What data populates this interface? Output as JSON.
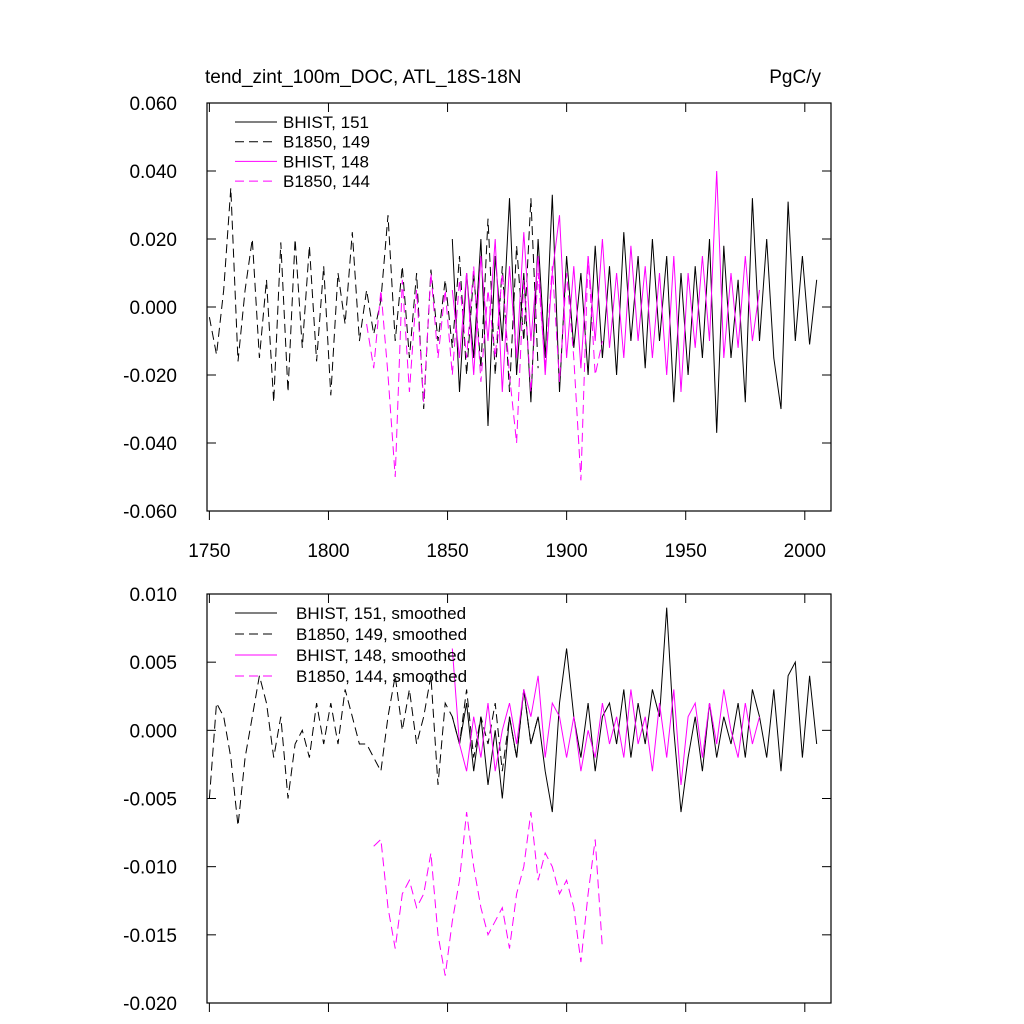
{
  "chart_data": [
    {
      "type": "line",
      "title": "tend_zint_100m_DOC, ATL_18S-18N",
      "units": "PgC/y",
      "xlim": [
        1749,
        2011
      ],
      "ylim": [
        -0.06,
        0.06
      ],
      "xticks": [
        1750,
        1800,
        1850,
        1900,
        1950,
        2000
      ],
      "xtick_labels": true,
      "yticks": [
        {
          "value": -0.06,
          "label": "-0.060"
        },
        {
          "value": -0.04,
          "label": "-0.040"
        },
        {
          "value": -0.02,
          "label": "-0.020"
        },
        {
          "value": 0,
          "label": "0.000"
        },
        {
          "value": 0.02,
          "label": "0.020"
        },
        {
          "value": 0.04,
          "label": "0.040"
        },
        {
          "value": 0.06,
          "label": "0.060"
        }
      ],
      "x": [
        1750,
        1753,
        1756,
        1759,
        1762,
        1765,
        1768,
        1771,
        1774,
        1777,
        1780,
        1783,
        1786,
        1789,
        1792,
        1795,
        1798,
        1801,
        1804,
        1807,
        1810,
        1813,
        1816,
        1819,
        1822,
        1825,
        1828,
        1831,
        1834,
        1837,
        1840,
        1843,
        1846,
        1849,
        1852,
        1855,
        1858,
        1861,
        1864,
        1867,
        1870,
        1873,
        1876,
        1879,
        1882,
        1885,
        1888,
        1891,
        1894,
        1897,
        1900,
        1903,
        1906,
        1909,
        1912,
        1915,
        1918,
        1921,
        1924,
        1927,
        1930,
        1933,
        1936,
        1939,
        1942,
        1945,
        1948,
        1951,
        1954,
        1957,
        1960,
        1963,
        1966,
        1969,
        1972,
        1975,
        1978,
        1981,
        1984,
        1987,
        1990,
        1993,
        1996,
        1999,
        2002,
        2005
      ],
      "series": [
        {
          "name": "BHIST, 151",
          "color": "#000000",
          "dash": false,
          "values": [
            null,
            null,
            null,
            null,
            null,
            null,
            null,
            null,
            null,
            null,
            null,
            null,
            null,
            null,
            null,
            null,
            null,
            null,
            null,
            null,
            null,
            null,
            null,
            null,
            null,
            null,
            null,
            null,
            null,
            null,
            null,
            null,
            null,
            null,
            0.02,
            -0.025,
            0.01,
            -0.015,
            0.02,
            -0.035,
            0.015,
            -0.01,
            0.032,
            -0.02,
            0.01,
            -0.028,
            0.02,
            -0.015,
            0.033,
            -0.025,
            0.015,
            -0.012,
            0.01,
            -0.02,
            0.018,
            -0.015,
            0.012,
            -0.02,
            0.022,
            -0.01,
            0.015,
            -0.018,
            0.02,
            -0.01,
            0.015,
            -0.028,
            0.01,
            -0.02,
            0.012,
            -0.015,
            0.02,
            -0.037,
            0.018,
            -0.015,
            0.008,
            -0.028,
            0.032,
            -0.01,
            0.02,
            -0.015,
            -0.03,
            0.031,
            -0.01,
            0.015,
            -0.011,
            0.008
          ]
        },
        {
          "name": "B1850, 149",
          "color": "#000000",
          "dash": true,
          "values": [
            -0.003,
            -0.014,
            0.005,
            0.035,
            -0.016,
            0.005,
            0.02,
            -0.015,
            0.008,
            -0.028,
            0.019,
            -0.025,
            0.02,
            -0.012,
            0.018,
            -0.016,
            0.012,
            -0.026,
            0.01,
            -0.005,
            0.022,
            -0.01,
            0.005,
            -0.008,
            0.002,
            0.027,
            -0.01,
            0.012,
            -0.015,
            0.01,
            -0.03,
            0.011,
            -0.01,
            0.008,
            -0.012,
            0.015,
            -0.02,
            0.01,
            -0.018,
            0.026,
            -0.02,
            0.012,
            -0.025,
            0.018,
            -0.01,
            0.032,
            -0.018,
            null,
            null,
            null,
            null,
            null,
            null,
            null,
            null,
            null,
            null,
            null,
            null,
            null,
            null,
            null,
            null,
            null,
            null,
            null,
            null,
            null,
            null,
            null,
            null,
            null,
            null,
            null,
            null,
            null,
            null,
            null,
            null,
            null,
            null,
            null,
            null,
            null,
            null,
            null
          ]
        },
        {
          "name": "BHIST, 148",
          "color": "#ff00ff",
          "dash": false,
          "values": [
            null,
            null,
            null,
            null,
            null,
            null,
            null,
            null,
            null,
            null,
            null,
            null,
            null,
            null,
            null,
            null,
            null,
            null,
            null,
            null,
            null,
            null,
            null,
            null,
            null,
            null,
            null,
            null,
            null,
            null,
            null,
            null,
            null,
            null,
            0.005,
            -0.015,
            0.01,
            -0.02,
            0.015,
            -0.01,
            0.02,
            -0.025,
            0.012,
            -0.015,
            0.022,
            -0.01,
            0.015,
            -0.02,
            0.01,
            0.027,
            -0.015,
            0.012,
            -0.018,
            0.015,
            -0.01,
            0.02,
            -0.012,
            0.01,
            -0.015,
            0.018,
            -0.01,
            0.012,
            -0.015,
            0.01,
            -0.02,
            0.015,
            -0.025,
            0.01,
            -0.012,
            0.015,
            -0.01,
            0.04,
            -0.015,
            0.01,
            -0.012,
            0.015,
            -0.01,
            0.005,
            null,
            null,
            null,
            null,
            null,
            null,
            null,
            null
          ]
        },
        {
          "name": "B1850, 144",
          "color": "#ff00ff",
          "dash": true,
          "values": [
            null,
            null,
            null,
            null,
            null,
            null,
            null,
            null,
            null,
            null,
            null,
            null,
            null,
            null,
            null,
            null,
            null,
            null,
            null,
            null,
            null,
            null,
            -0.005,
            -0.018,
            0.005,
            -0.02,
            -0.05,
            0.008,
            -0.025,
            0.005,
            -0.028,
            0.01,
            -0.015,
            0.005,
            -0.02,
            0.008,
            -0.015,
            0.012,
            -0.022,
            0.005,
            -0.015,
            0.01,
            -0.02,
            -0.04,
            0.008,
            -0.025,
            0.01,
            -0.018,
            0.012,
            -0.022,
            0.01,
            -0.015,
            -0.051,
            0.015,
            -0.02,
            -0.01,
            null,
            null,
            null,
            null,
            null,
            null,
            null,
            null,
            null,
            null,
            null,
            null,
            null,
            null,
            null,
            null,
            null,
            null,
            null,
            null,
            null,
            null,
            null,
            null,
            null,
            null,
            null,
            null,
            null,
            null
          ]
        }
      ]
    },
    {
      "type": "line",
      "xlim": [
        1749,
        2011
      ],
      "ylim": [
        -0.02,
        0.01
      ],
      "xticks": [
        1750,
        1800,
        1850,
        1900,
        1950,
        2000
      ],
      "xtick_labels": false,
      "yticks": [
        {
          "value": -0.02,
          "label": "-0.020"
        },
        {
          "value": -0.015,
          "label": "-0.015"
        },
        {
          "value": -0.01,
          "label": "-0.010"
        },
        {
          "value": -0.005,
          "label": "-0.005"
        },
        {
          "value": 0,
          "label": "0.000"
        },
        {
          "value": 0.005,
          "label": "0.005"
        },
        {
          "value": 0.01,
          "label": "0.010"
        }
      ],
      "x": [
        1750,
        1753,
        1756,
        1759,
        1762,
        1765,
        1768,
        1771,
        1774,
        1777,
        1780,
        1783,
        1786,
        1789,
        1792,
        1795,
        1798,
        1801,
        1804,
        1807,
        1810,
        1813,
        1816,
        1819,
        1822,
        1825,
        1828,
        1831,
        1834,
        1837,
        1840,
        1843,
        1846,
        1849,
        1852,
        1855,
        1858,
        1861,
        1864,
        1867,
        1870,
        1873,
        1876,
        1879,
        1882,
        1885,
        1888,
        1891,
        1894,
        1897,
        1900,
        1903,
        1906,
        1909,
        1912,
        1915,
        1918,
        1921,
        1924,
        1927,
        1930,
        1933,
        1936,
        1939,
        1942,
        1945,
        1948,
        1951,
        1954,
        1957,
        1960,
        1963,
        1966,
        1969,
        1972,
        1975,
        1978,
        1981,
        1984,
        1987,
        1990,
        1993,
        1996,
        1999,
        2002,
        2005
      ],
      "series": [
        {
          "name": "BHIST, 151, smoothed",
          "color": "#000000",
          "dash": false,
          "values": [
            null,
            null,
            null,
            null,
            null,
            null,
            null,
            null,
            null,
            null,
            null,
            null,
            null,
            null,
            null,
            null,
            null,
            null,
            null,
            null,
            null,
            null,
            null,
            null,
            null,
            null,
            null,
            null,
            null,
            null,
            null,
            null,
            null,
            null,
            0.001,
            -0.001,
            0.002,
            -0.003,
            0.001,
            -0.004,
            0,
            -0.005,
            0.001,
            -0.002,
            0.003,
            -0.001,
            0.001,
            -0.003,
            -0.006,
            0.002,
            0.006,
            0.001,
            -0.002,
            0.002,
            -0.003,
            0.001,
            0.002,
            -0.001,
            0.003,
            -0.002,
            0.002,
            -0.001,
            0.003,
            0.001,
            0.009,
            0,
            -0.006,
            -0.002,
            0.001,
            -0.003,
            0.002,
            -0.002,
            0.001,
            -0.001,
            0.002,
            -0.002,
            0.003,
            0.001,
            -0.002,
            0.003,
            -0.003,
            0.004,
            0.005,
            -0.002,
            0.004,
            -0.001
          ]
        },
        {
          "name": "B1850, 149, smoothed",
          "color": "#000000",
          "dash": true,
          "values": [
            -0.005,
            0.002,
            0.001,
            -0.002,
            -0.007,
            -0.002,
            0.001,
            0.004,
            0.002,
            -0.002,
            0.001,
            -0.005,
            -0.001,
            0,
            -0.002,
            0.002,
            -0.001,
            0.002,
            -0.001,
            0.003,
            0.001,
            -0.001,
            -0.001,
            -0.002,
            -0.003,
            0.001,
            0.004,
            0,
            0.003,
            -0.001,
            0.001,
            0.004,
            -0.004,
            0.002,
            0.001,
            -0.001,
            0.003,
            -0.002,
            0.001,
            -0.001,
            0.002,
            -0.003,
            0.001,
            -0.002,
            0.003,
            -0.001,
            0.001,
            null,
            null,
            null,
            null,
            null,
            null,
            null,
            null,
            null,
            null,
            null,
            null,
            null,
            null,
            null,
            null,
            null,
            null,
            null,
            null,
            null,
            null,
            null,
            null,
            null,
            null,
            null,
            null,
            null,
            null,
            null,
            null,
            null,
            null,
            null,
            null,
            null,
            null,
            null
          ]
        },
        {
          "name": "BHIST, 148, smoothed",
          "color": "#ff00ff",
          "dash": false,
          "values": [
            null,
            null,
            null,
            null,
            null,
            null,
            null,
            null,
            null,
            null,
            null,
            null,
            null,
            null,
            null,
            null,
            null,
            null,
            null,
            null,
            null,
            null,
            null,
            null,
            null,
            null,
            null,
            null,
            null,
            null,
            null,
            null,
            null,
            null,
            0.006,
            -0.001,
            -0.003,
            0.001,
            -0.002,
            0.002,
            -0.003,
            0,
            0.002,
            -0.001,
            0.003,
            0.001,
            0.004,
            -0.002,
            0.002,
            0.001,
            -0.002,
            0.001,
            -0.003,
            0,
            -0.002,
            0.002,
            -0.001,
            0.001,
            -0.002,
            0.003,
            -0.001,
            0.001,
            -0.003,
            0.002,
            -0.002,
            0.003,
            -0.004,
            0.001,
            0.002,
            -0.002,
            0.002,
            -0.001,
            0.003,
            0,
            -0.002,
            0.002,
            -0.001,
            0.001,
            null,
            null,
            null,
            null,
            null,
            null,
            null,
            null
          ]
        },
        {
          "name": "B1850, 144, smoothed",
          "color": "#ff00ff",
          "dash": true,
          "values": [
            null,
            null,
            null,
            null,
            null,
            null,
            null,
            null,
            null,
            null,
            null,
            null,
            null,
            null,
            null,
            null,
            null,
            null,
            null,
            null,
            null,
            null,
            null,
            -0.0085,
            -0.008,
            -0.013,
            -0.016,
            -0.012,
            -0.011,
            -0.013,
            -0.012,
            -0.009,
            -0.015,
            -0.018,
            -0.014,
            -0.011,
            -0.006,
            -0.01,
            -0.013,
            -0.015,
            -0.014,
            -0.013,
            -0.016,
            -0.012,
            -0.01,
            -0.006,
            -0.011,
            -0.009,
            -0.01,
            -0.012,
            -0.011,
            -0.013,
            -0.017,
            -0.012,
            -0.008,
            -0.016,
            null,
            null,
            null,
            null,
            null,
            null,
            null,
            null,
            null,
            null,
            null,
            null,
            null,
            null,
            null,
            null,
            null,
            null,
            null,
            null,
            null,
            null,
            null,
            null,
            null,
            null,
            null,
            null,
            null,
            null
          ]
        }
      ]
    }
  ]
}
